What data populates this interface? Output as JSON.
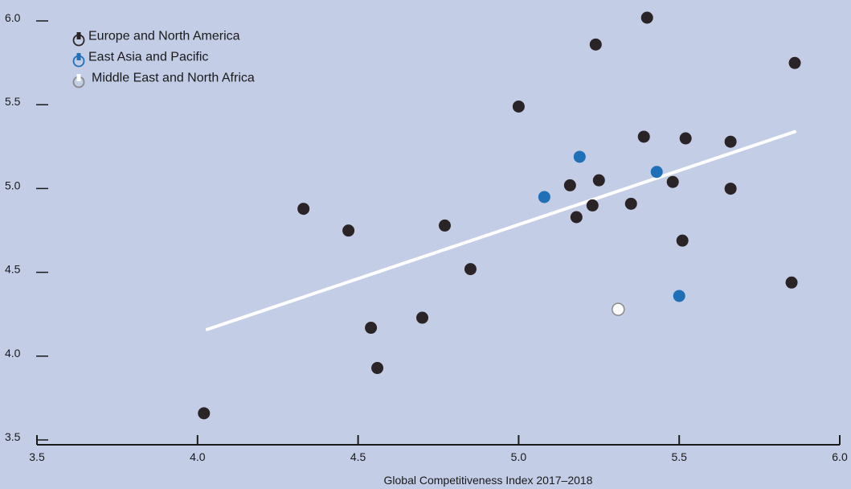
{
  "chart_data": {
    "type": "scatter",
    "title": "",
    "xlabel": "Global Competitiveness Index 2017–2018",
    "ylabel": "",
    "xlim": [
      3.5,
      6.0
    ],
    "ylim": [
      3.5,
      6.0
    ],
    "x_ticks": [
      "3.5",
      "4.0",
      "4.5",
      "5.0",
      "5.5",
      "6.0"
    ],
    "y_ticks": [
      "3.5",
      "4.0",
      "4.5",
      "5.0",
      "5.5",
      "6.0"
    ],
    "grid": false,
    "legend_position": "top-left",
    "background_color": "#c4cde6",
    "series": [
      {
        "name": "Europe and North America",
        "color": "#2b2426",
        "points": [
          [
            4.02,
            3.64
          ],
          [
            4.33,
            4.86
          ],
          [
            4.47,
            4.73
          ],
          [
            4.54,
            4.15
          ],
          [
            4.56,
            3.91
          ],
          [
            4.7,
            4.21
          ],
          [
            4.77,
            4.76
          ],
          [
            4.85,
            4.5
          ],
          [
            5.0,
            5.47
          ],
          [
            5.16,
            5.0
          ],
          [
            5.18,
            4.81
          ],
          [
            5.23,
            4.88
          ],
          [
            5.24,
            5.84
          ],
          [
            5.25,
            5.03
          ],
          [
            5.35,
            4.89
          ],
          [
            5.39,
            5.29
          ],
          [
            5.4,
            6.0
          ],
          [
            5.48,
            5.02
          ],
          [
            5.51,
            4.67
          ],
          [
            5.52,
            5.28
          ],
          [
            5.66,
            5.26
          ],
          [
            5.66,
            4.98
          ],
          [
            5.85,
            4.42
          ],
          [
            5.86,
            5.73
          ]
        ]
      },
      {
        "name": "East Asia and Pacific",
        "color": "#1f70b6",
        "points": [
          [
            5.08,
            4.93
          ],
          [
            5.19,
            5.17
          ],
          [
            5.43,
            5.08
          ],
          [
            5.5,
            4.34
          ]
        ]
      },
      {
        "name": "Middle East and North Africa",
        "color": "#ffffff",
        "stroke": "#8a8a8a",
        "points": [
          [
            5.31,
            4.26
          ]
        ]
      }
    ],
    "trendline": {
      "color": "#ffffff",
      "x": [
        4.03,
        5.86
      ],
      "y": [
        4.14,
        5.32
      ]
    }
  }
}
